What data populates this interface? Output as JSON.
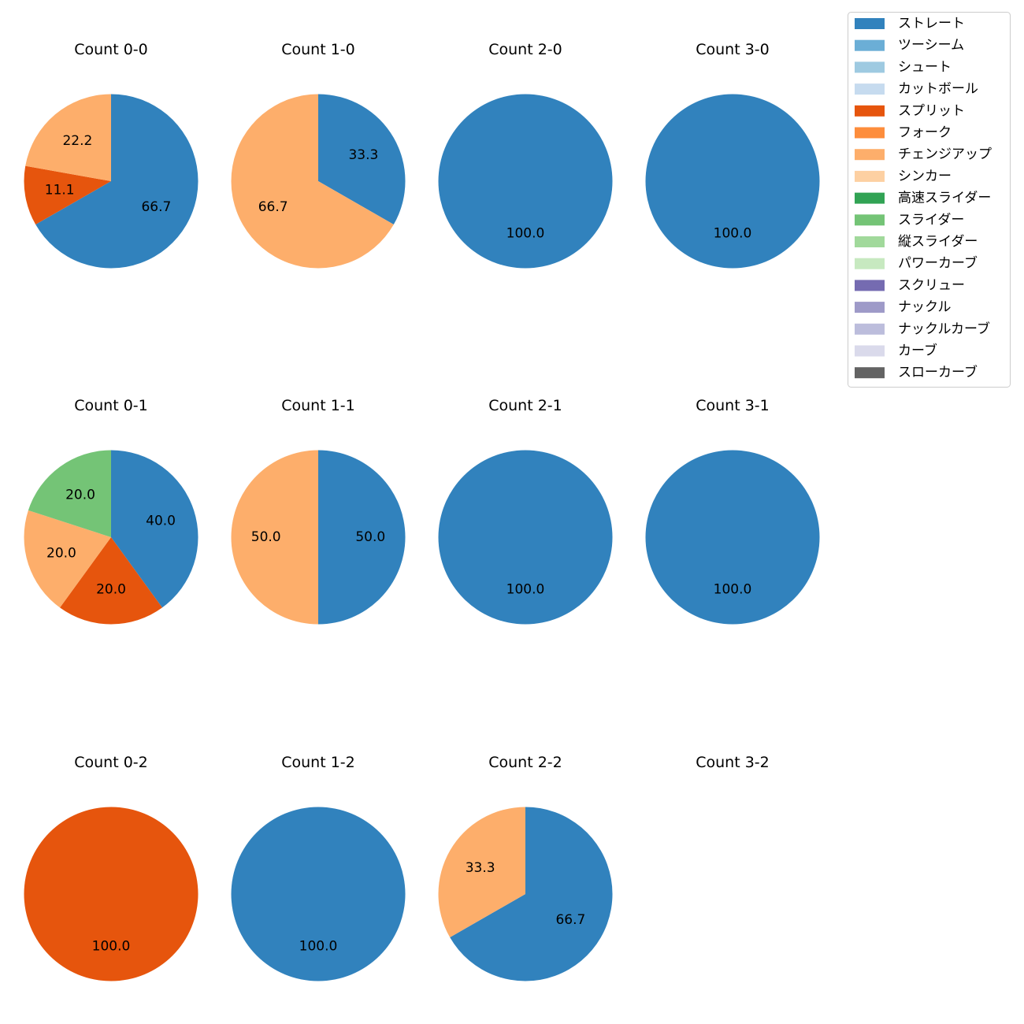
{
  "legend": {
    "items": [
      {
        "label": "ストレート",
        "color": "#3182bd"
      },
      {
        "label": "ツーシーム",
        "color": "#6baed6"
      },
      {
        "label": "シュート",
        "color": "#9ecae1"
      },
      {
        "label": "カットボール",
        "color": "#c6dbef"
      },
      {
        "label": "スプリット",
        "color": "#e6550d"
      },
      {
        "label": "フォーク",
        "color": "#fd8d3c"
      },
      {
        "label": "チェンジアップ",
        "color": "#fdae6b"
      },
      {
        "label": "シンカー",
        "color": "#fdd0a2"
      },
      {
        "label": "高速スライダー",
        "color": "#31a354"
      },
      {
        "label": "スライダー",
        "color": "#74c476"
      },
      {
        "label": "縦スライダー",
        "color": "#a1d99b"
      },
      {
        "label": "パワーカーブ",
        "color": "#c7e9c0"
      },
      {
        "label": "スクリュー",
        "color": "#756bb1"
      },
      {
        "label": "ナックル",
        "color": "#9e9ac8"
      },
      {
        "label": "ナックルカーブ",
        "color": "#bcbddc"
      },
      {
        "label": "カーブ",
        "color": "#dadaeb"
      },
      {
        "label": "スローカーブ",
        "color": "#636363"
      }
    ]
  },
  "chart_data": [
    {
      "type": "pie",
      "title": "Count 0-0",
      "slices": [
        {
          "label": "ストレート",
          "value": 66.7,
          "text": "66.7"
        },
        {
          "label": "スプリット",
          "value": 11.1,
          "text": "11.1"
        },
        {
          "label": "チェンジアップ",
          "value": 22.2,
          "text": "22.2"
        }
      ]
    },
    {
      "type": "pie",
      "title": "Count 1-0",
      "slices": [
        {
          "label": "ストレート",
          "value": 33.3,
          "text": "33.3"
        },
        {
          "label": "チェンジアップ",
          "value": 66.7,
          "text": "66.7"
        }
      ]
    },
    {
      "type": "pie",
      "title": "Count 2-0",
      "slices": [
        {
          "label": "ストレート",
          "value": 100.0,
          "text": "100.0"
        }
      ]
    },
    {
      "type": "pie",
      "title": "Count 3-0",
      "slices": [
        {
          "label": "ストレート",
          "value": 100.0,
          "text": "100.0"
        }
      ]
    },
    {
      "type": "pie",
      "title": "Count 0-1",
      "slices": [
        {
          "label": "ストレート",
          "value": 40.0,
          "text": "40.0"
        },
        {
          "label": "スプリット",
          "value": 20.0,
          "text": "20.0"
        },
        {
          "label": "チェンジアップ",
          "value": 20.0,
          "text": "20.0"
        },
        {
          "label": "スライダー",
          "value": 20.0,
          "text": "20.0"
        }
      ]
    },
    {
      "type": "pie",
      "title": "Count 1-1",
      "slices": [
        {
          "label": "ストレート",
          "value": 50.0,
          "text": "50.0"
        },
        {
          "label": "チェンジアップ",
          "value": 50.0,
          "text": "50.0"
        }
      ]
    },
    {
      "type": "pie",
      "title": "Count 2-1",
      "slices": [
        {
          "label": "ストレート",
          "value": 100.0,
          "text": "100.0"
        }
      ]
    },
    {
      "type": "pie",
      "title": "Count 3-1",
      "slices": [
        {
          "label": "ストレート",
          "value": 100.0,
          "text": "100.0"
        }
      ]
    },
    {
      "type": "pie",
      "title": "Count 0-2",
      "slices": [
        {
          "label": "スプリット",
          "value": 100.0,
          "text": "100.0"
        }
      ]
    },
    {
      "type": "pie",
      "title": "Count 1-2",
      "slices": [
        {
          "label": "ストレート",
          "value": 100.0,
          "text": "100.0"
        }
      ]
    },
    {
      "type": "pie",
      "title": "Count 2-2",
      "slices": [
        {
          "label": "ストレート",
          "value": 66.7,
          "text": "66.7"
        },
        {
          "label": "チェンジアップ",
          "value": 33.3,
          "text": "33.3"
        }
      ]
    },
    {
      "type": "pie",
      "title": "Count 3-2",
      "slices": []
    }
  ]
}
